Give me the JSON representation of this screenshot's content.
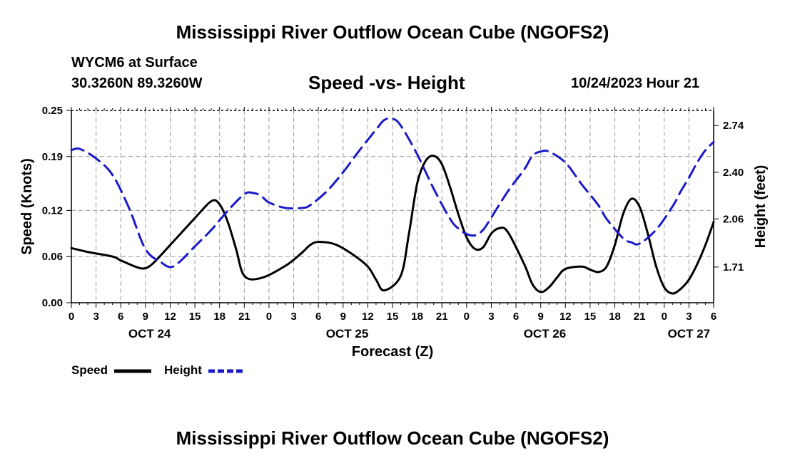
{
  "header": {
    "title": "Mississippi River Outflow Ocean Cube (NGOFS2)",
    "station": "WYCM6 at Surface",
    "coords": "30.3260N  89.3260W",
    "subtitle": "Speed -vs- Height",
    "datetime": "10/24/2023 Hour 21"
  },
  "footer": {
    "title": "Mississippi River Outflow Ocean Cube (NGOFS2)"
  },
  "legend": {
    "speed_label": "Speed",
    "height_label": "Height"
  },
  "colors": {
    "speed": "#000000",
    "height": "#1a1ac8",
    "grid": "#9a9a9a"
  },
  "chart_data": {
    "type": "line",
    "title": "Speed -vs- Height",
    "xlabel": "Forecast (Z)",
    "ylabel": "Speed (Knots)",
    "y2label": "Height (feet)",
    "xlim": [
      0,
      78
    ],
    "ylim": [
      0,
      0.25
    ],
    "y2lim": [
      1.45,
      2.85
    ],
    "x_ticks": [
      0,
      3,
      6,
      9,
      12,
      15,
      18,
      21,
      24,
      27,
      30,
      33,
      36,
      39,
      42,
      45,
      48,
      51,
      54,
      57,
      60,
      63,
      66,
      69,
      72,
      75,
      78
    ],
    "x_tick_labels": [
      "0",
      "3",
      "6",
      "9",
      "12",
      "15",
      "18",
      "21",
      "0",
      "3",
      "6",
      "9",
      "12",
      "15",
      "18",
      "21",
      "0",
      "3",
      "6",
      "9",
      "12",
      "15",
      "18",
      "21",
      "0",
      "3",
      "6"
    ],
    "day_labels": [
      {
        "x": 9.5,
        "label": "OCT 24"
      },
      {
        "x": 33.5,
        "label": "OCT 25"
      },
      {
        "x": 57.5,
        "label": "OCT 26"
      },
      {
        "x": 75,
        "label": "OCT 27"
      }
    ],
    "y_ticks": [
      0.0,
      0.06,
      0.12,
      0.19,
      0.25
    ],
    "y_tick_labels": [
      "0.00",
      "0.06",
      "0.12",
      "0.19",
      "0.25"
    ],
    "y2_ticks": [
      1.71,
      2.06,
      2.4,
      2.74
    ],
    "y2_tick_labels": [
      "1.71",
      "2.06",
      "2.40",
      "2.74"
    ],
    "grid": true,
    "series": [
      {
        "name": "Speed",
        "axis": "left",
        "style": "solid",
        "x": [
          0,
          2,
          5,
          6,
          8,
          9,
          10,
          12,
          15,
          17,
          18,
          19,
          20,
          21,
          23,
          26,
          28,
          29,
          30,
          32,
          34,
          36,
          37,
          38,
          40,
          41,
          42,
          43,
          44,
          45,
          46,
          47,
          48,
          49,
          50,
          51,
          52,
          53,
          55,
          56,
          57,
          58,
          59,
          60,
          62,
          63,
          64,
          65,
          66,
          67,
          68,
          69,
          70,
          71,
          72,
          73,
          74,
          75,
          76,
          77,
          78
        ],
        "y": [
          0.071,
          0.066,
          0.06,
          0.055,
          0.046,
          0.045,
          0.052,
          0.075,
          0.11,
          0.132,
          0.128,
          0.105,
          0.07,
          0.035,
          0.032,
          0.048,
          0.065,
          0.075,
          0.079,
          0.076,
          0.064,
          0.047,
          0.03,
          0.016,
          0.035,
          0.09,
          0.155,
          0.184,
          0.191,
          0.18,
          0.15,
          0.115,
          0.085,
          0.07,
          0.072,
          0.09,
          0.097,
          0.092,
          0.05,
          0.024,
          0.014,
          0.02,
          0.033,
          0.044,
          0.047,
          0.043,
          0.04,
          0.047,
          0.075,
          0.115,
          0.135,
          0.125,
          0.09,
          0.048,
          0.02,
          0.012,
          0.018,
          0.03,
          0.05,
          0.075,
          0.105
        ]
      },
      {
        "name": "Height",
        "axis": "right",
        "style": "dashed",
        "x": [
          0,
          1,
          3,
          5,
          7,
          9,
          11,
          12,
          13,
          15,
          17,
          19,
          21,
          22,
          23,
          24,
          26,
          28,
          29,
          31,
          33,
          35,
          37,
          38,
          39,
          40,
          42,
          44,
          46,
          47,
          48,
          49,
          50,
          51,
          53,
          55,
          56,
          57,
          58,
          60,
          62,
          64,
          65,
          67,
          68,
          69,
          71,
          73,
          74,
          75,
          76,
          77,
          78
        ],
        "y": [
          2.56,
          2.57,
          2.5,
          2.38,
          2.14,
          1.84,
          1.74,
          1.71,
          1.74,
          1.86,
          1.98,
          2.12,
          2.24,
          2.25,
          2.23,
          2.18,
          2.14,
          2.14,
          2.16,
          2.26,
          2.4,
          2.56,
          2.71,
          2.78,
          2.79,
          2.74,
          2.53,
          2.28,
          2.06,
          1.99,
          1.95,
          1.94,
          1.98,
          2.07,
          2.26,
          2.42,
          2.52,
          2.55,
          2.55,
          2.47,
          2.31,
          2.16,
          2.06,
          1.92,
          1.89,
          1.88,
          1.98,
          2.15,
          2.26,
          2.36,
          2.47,
          2.56,
          2.62
        ]
      }
    ]
  }
}
